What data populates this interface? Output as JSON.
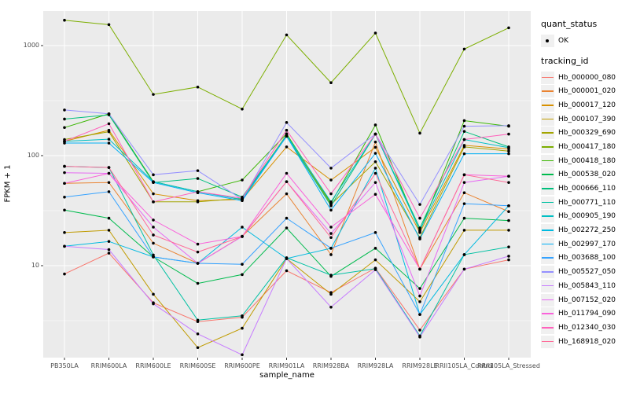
{
  "legend": {
    "quant_title": "quant_status",
    "quant_items": [
      {
        "label": "OK"
      }
    ],
    "tracking_title": "tracking_id"
  },
  "chart_data": {
    "type": "line",
    "title": "",
    "x_label": "sample_name",
    "y_label": "FPKM + 1",
    "y_scale": "log10",
    "y_ticks": [
      10,
      100,
      1000
    ],
    "y_minor_ticks": [
      3.162,
      31.62,
      316.2
    ],
    "ylim": [
      1.4,
      2200
    ],
    "grid": true,
    "legend_position": "right",
    "point_marker": {
      "label": "OK",
      "shape": "circle",
      "color": "#000000"
    },
    "panel_background": "#ebebeb",
    "grid_color": "#ffffff",
    "categories": [
      "PB350LA",
      "RRIM600LA",
      "RRIM600LE",
      "RRIM600SE",
      "RRIM600PE",
      "RRIM901LA",
      "RRIM928BA",
      "RRIM928LA",
      "RRIM928LE",
      "RRII105LA_Control",
      "RRII105LA_Stressed"
    ],
    "series": [
      {
        "name": "Hb_000000_080",
        "color": "#F8766D",
        "values": [
          8.4,
          13,
          4.6,
          3.1,
          3.4,
          9,
          5.7,
          9.5,
          2.6,
          9.3,
          11.3
        ]
      },
      {
        "name": "Hb_000001_020",
        "color": "#EA8331",
        "values": [
          56,
          57,
          16,
          10.5,
          18.5,
          45,
          12.6,
          133,
          9.3,
          46,
          31
        ]
      },
      {
        "name": "Hb_000017_120",
        "color": "#D89000",
        "values": [
          135,
          170,
          45,
          39,
          40,
          120,
          60,
          119,
          20,
          124,
          115
        ]
      },
      {
        "name": "Hb_000107_390",
        "color": "#C09B00",
        "values": [
          20,
          21,
          5.5,
          1.8,
          2.7,
          11.6,
          5.5,
          11.3,
          4.7,
          21,
          21
        ]
      },
      {
        "name": "Hb_000329_690",
        "color": "#A3A500",
        "values": [
          140,
          165,
          38,
          38,
          41,
          155,
          36,
          88,
          18,
          120,
          110
        ]
      },
      {
        "name": "Hb_000417_180",
        "color": "#7CAE00",
        "values": [
          1700,
          1550,
          360,
          420,
          265,
          1250,
          460,
          1300,
          160,
          930,
          1450
        ]
      },
      {
        "name": "Hb_000418_180",
        "color": "#39B600",
        "values": [
          180,
          240,
          58,
          47,
          60,
          158,
          37,
          190,
          20.5,
          208,
          185
        ]
      },
      {
        "name": "Hb_000538_020",
        "color": "#00BB4E",
        "values": [
          32,
          27,
          12,
          6.9,
          8.3,
          22,
          8,
          14.4,
          6.2,
          27,
          25.7
        ]
      },
      {
        "name": "Hb_000666_110",
        "color": "#00BF7D",
        "values": [
          215,
          235,
          57,
          62,
          42,
          150,
          35,
          157,
          22,
          166,
          120
        ]
      },
      {
        "name": "Hb_000771_110",
        "color": "#00C1A3",
        "values": [
          80,
          78,
          12.5,
          3.2,
          3.5,
          11.8,
          8.2,
          9.4,
          2.3,
          12.6,
          14.8
        ]
      },
      {
        "name": "Hb_000905_190",
        "color": "#00BFC4",
        "values": [
          135,
          141,
          58,
          47,
          40,
          153,
          38,
          157,
          21,
          140,
          118
        ]
      },
      {
        "name": "Hb_002272_250",
        "color": "#00BAE0",
        "values": [
          15,
          16.6,
          12,
          10.5,
          22.4,
          11.6,
          14.4,
          77,
          3.6,
          12.6,
          35
        ]
      },
      {
        "name": "Hb_002997_170",
        "color": "#00B0F6",
        "values": [
          130,
          130,
          57,
          46,
          39,
          150,
          32,
          105,
          17.5,
          104,
          104
        ]
      },
      {
        "name": "Hb_003688_100",
        "color": "#35A2FF",
        "values": [
          42,
          47,
          12,
          10.5,
          10.3,
          27,
          14.4,
          20,
          3.6,
          36.6,
          35
        ]
      },
      {
        "name": "Hb_005527_050",
        "color": "#9590FF",
        "values": [
          260,
          240,
          67,
          73,
          40,
          200,
          77,
          157,
          36,
          185,
          187
        ]
      },
      {
        "name": "Hb_005843_110",
        "color": "#C77CFF",
        "values": [
          15,
          14,
          4.5,
          2.4,
          1.55,
          11.6,
          4.2,
          9.2,
          2.25,
          9.3,
          12.2
        ]
      },
      {
        "name": "Hb_007152_020",
        "color": "#E76BF3",
        "values": [
          70,
          69,
          22.4,
          10.5,
          18.4,
          58,
          19.6,
          57,
          5.3,
          57,
          65
        ]
      },
      {
        "name": "Hb_011794_090",
        "color": "#FA62DB",
        "values": [
          56,
          69,
          26,
          15.7,
          18.4,
          69,
          22.4,
          44.5,
          9.3,
          67,
          65
        ]
      },
      {
        "name": "Hb_012340_030",
        "color": "#FF62BC",
        "values": [
          135,
          195,
          38,
          47,
          41,
          170,
          45,
          157,
          27,
          140,
          157
        ]
      },
      {
        "name": "Hb_168918_020",
        "color": "#FF6A98",
        "values": [
          80,
          78,
          19,
          13.3,
          18.4,
          58,
          18,
          69,
          9.3,
          67,
          57
        ]
      }
    ]
  }
}
